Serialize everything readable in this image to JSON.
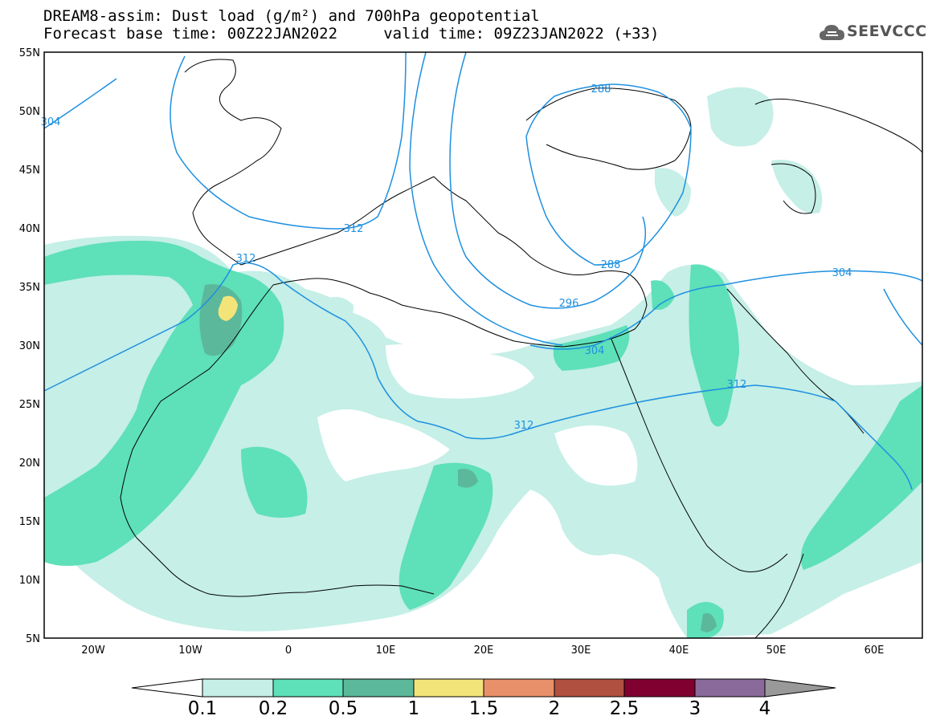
{
  "title": {
    "line1": "DREAM8-assim: Dust load (g/m²) and 700hPa geopotential",
    "line2": "Forecast base time: 00Z22JAN2022     valid time: 09Z23JAN2022 (+33)"
  },
  "logo": {
    "text": "SEEVCCC",
    "icon": "cloud-icon"
  },
  "axes": {
    "lat_labels": [
      "55N",
      "50N",
      "45N",
      "40N",
      "35N",
      "30N",
      "25N",
      "20N",
      "15N",
      "10N",
      "5N"
    ],
    "lon_labels": [
      "20W",
      "10W",
      "0",
      "10E",
      "20E",
      "30E",
      "40E",
      "50E",
      "60E"
    ]
  },
  "contours": {
    "labels": [
      "304",
      "312",
      "312",
      "312",
      "288",
      "288",
      "296",
      "304",
      "304",
      "312"
    ]
  },
  "colorbar": {
    "ticks": [
      "0.1",
      "0.2",
      "0.5",
      "1",
      "1.5",
      "2",
      "2.5",
      "3",
      "4"
    ],
    "colors": [
      "#ffffff",
      "#c5efe7",
      "#5ee0b8",
      "#5cb89a",
      "#f3e47a",
      "#e8906a",
      "#b05040",
      "#800030",
      "#8a6a9a",
      "#999999"
    ]
  },
  "map": {
    "extent": {
      "lon": [
        -25,
        65
      ],
      "lat": [
        5,
        55
      ]
    },
    "dust_colors": {
      "low": "#c5efe7",
      "mid": "#5ee0b8",
      "high": "#5cb89a",
      "peak": "#f3e47a"
    },
    "contour_color": "#1e90e0"
  }
}
